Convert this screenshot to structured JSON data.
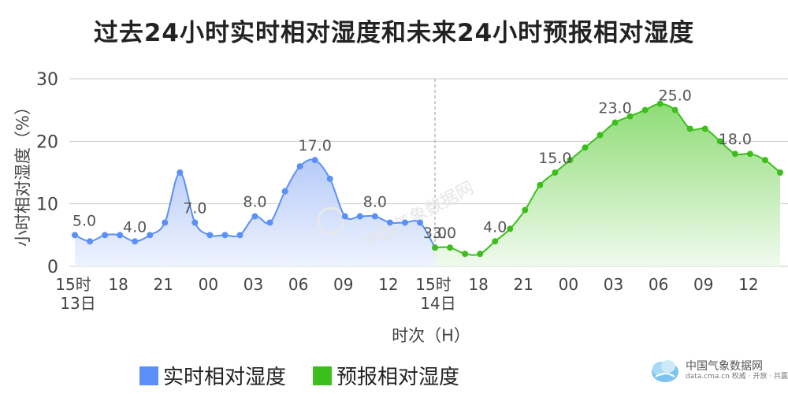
{
  "title": "过去24小时实时相对湿度和未来24小时预报相对湿度",
  "legend": {
    "actual": "实时相对湿度",
    "forecast": "预报相对湿度"
  },
  "logo": {
    "name": "中国气象数据网",
    "sub": "data.cma.cn 权威 · 开放 · 共赢",
    "watermark": "中国气象数据网"
  },
  "colors": {
    "actual_line": "#5b8ff9",
    "actual_fill_top": "#b7cbf8",
    "forecast_line": "#3cbf1c",
    "forecast_fill_top": "#8edc76",
    "grid": "#cccccc",
    "divider": "#999999"
  },
  "chart_data": {
    "type": "area",
    "ylabel": "小时相对湿度（%）",
    "xlabel": "时次（H）",
    "ylim": [
      0,
      30
    ],
    "yticks": [
      0,
      10,
      20,
      30
    ],
    "x_tick_labels": [
      "15时",
      "18",
      "21",
      "00",
      "03",
      "06",
      "09",
      "12",
      "15时",
      "18",
      "21",
      "00",
      "03",
      "06",
      "09",
      "12"
    ],
    "x_date_labels": [
      "13日",
      "14日"
    ],
    "series": [
      {
        "name": "实时相对湿度",
        "values": [
          5,
          4,
          5,
          5,
          4,
          5,
          7,
          15,
          7,
          5,
          5,
          5,
          8,
          7,
          12,
          16,
          17,
          14,
          8,
          8,
          8,
          7,
          7,
          7,
          3
        ],
        "labels": [
          {
            "i": 0,
            "text": "5.0"
          },
          {
            "i": 4,
            "text": "4.0"
          },
          {
            "i": 8,
            "text": "7.0"
          },
          {
            "i": 12,
            "text": "8.0"
          },
          {
            "i": 16,
            "text": "17.0"
          },
          {
            "i": 20,
            "text": "8.0"
          },
          {
            "i": 24,
            "text": "3.0"
          }
        ]
      },
      {
        "name": "预报相对湿度",
        "values": [
          3,
          3,
          2,
          2,
          4,
          6,
          9,
          13,
          15,
          17,
          19,
          21,
          23,
          24,
          25,
          26,
          25,
          22,
          22,
          20,
          18,
          18,
          17,
          15
        ],
        "labels": [
          {
            "i": 0,
            "text": "3.0"
          },
          {
            "i": 4,
            "text": "4.0"
          },
          {
            "i": 8,
            "text": "15.0"
          },
          {
            "i": 12,
            "text": "23.0"
          },
          {
            "i": 16,
            "text": "25.0"
          },
          {
            "i": 20,
            "text": "18.0"
          }
        ]
      }
    ]
  }
}
